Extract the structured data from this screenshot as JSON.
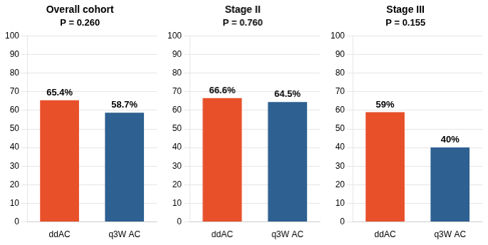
{
  "chart_data": [
    {
      "type": "bar",
      "title": "Overall cohort",
      "subtitle": "P = 0.260",
      "categories": [
        "ddAC",
        "q3W AC"
      ],
      "values": [
        65.4,
        58.7
      ],
      "value_labels": [
        "65.4%",
        "58.7%"
      ],
      "data_labels": true,
      "colors": [
        "#E8502A",
        "#2E6091"
      ],
      "ylim": [
        0,
        100
      ],
      "yticks": [
        0,
        10,
        20,
        30,
        40,
        50,
        60,
        70,
        80,
        90,
        100
      ],
      "grid": true
    },
    {
      "type": "bar",
      "title": "Stage II",
      "subtitle": "P = 0.760",
      "categories": [
        "ddAC",
        "q3W AC"
      ],
      "values": [
        66.6,
        64.5
      ],
      "value_labels": [
        "66.6%",
        "64.5%"
      ],
      "data_labels": true,
      "colors": [
        "#E8502A",
        "#2E6091"
      ],
      "ylim": [
        0,
        100
      ],
      "yticks": [
        0,
        10,
        20,
        30,
        40,
        50,
        60,
        70,
        80,
        90,
        100
      ],
      "grid": true
    },
    {
      "type": "bar",
      "title": "Stage III",
      "subtitle": "P = 0.155",
      "categories": [
        "ddAC",
        "q3W AC"
      ],
      "values": [
        59,
        40
      ],
      "value_labels": [
        "59%",
        "40%"
      ],
      "data_labels": true,
      "colors": [
        "#E8502A",
        "#2E6091"
      ],
      "ylim": [
        0,
        100
      ],
      "yticks": [
        0,
        10,
        20,
        30,
        40,
        50,
        60,
        70,
        80,
        90,
        100
      ],
      "grid": true
    }
  ]
}
